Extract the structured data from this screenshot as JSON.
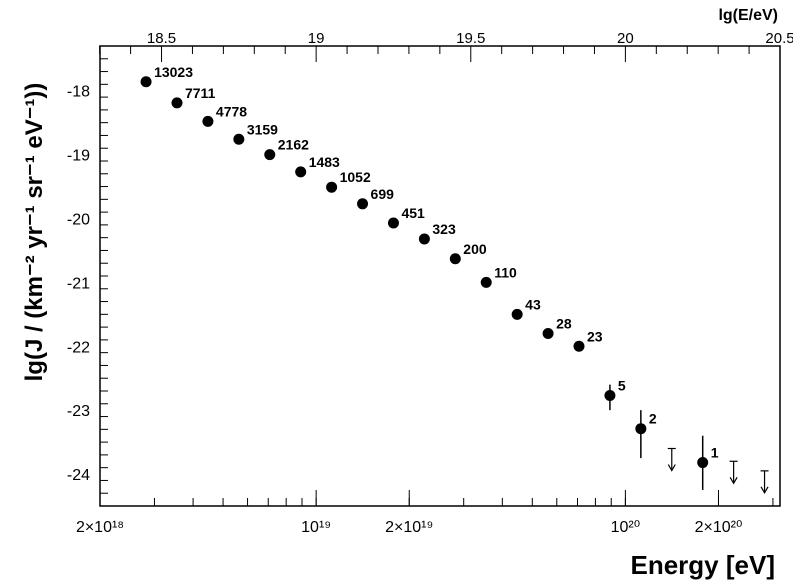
{
  "chart_data": {
    "type": "scatter",
    "x_scale": "log",
    "y_scale": "linear",
    "xlabel": "Energy [eV]",
    "ylabel": "lg(J / (km⁻² yr⁻¹ sr⁻¹ eV⁻¹))",
    "xlabel_top": "lg(E/eV)",
    "xlim": [
      2e+18,
      3.162e+20
    ],
    "ylim": [
      -24.5,
      -17.3
    ],
    "top_lim": [
      18.3,
      20.5
    ],
    "x_ticks_bottom": [
      {
        "value": 2e+18,
        "label": "2×10¹⁸"
      },
      {
        "value": 1e+19,
        "label": "10¹⁹"
      },
      {
        "value": 2e+19,
        "label": "2×10¹⁹"
      },
      {
        "value": 1e+20,
        "label": "10²⁰"
      },
      {
        "value": 2e+20,
        "label": "2×10²⁰"
      }
    ],
    "x_ticks_top": [
      {
        "value": 18.5,
        "label": "18.5"
      },
      {
        "value": 19,
        "label": "19"
      },
      {
        "value": 19.5,
        "label": "19.5"
      },
      {
        "value": 20,
        "label": "20"
      },
      {
        "value": 20.5,
        "label": "20.5"
      }
    ],
    "y_ticks": [
      {
        "value": -18,
        "label": "-18"
      },
      {
        "value": -19,
        "label": "-19"
      },
      {
        "value": -20,
        "label": "-20"
      },
      {
        "value": -21,
        "label": "-21"
      },
      {
        "value": -22,
        "label": "-22"
      },
      {
        "value": -23,
        "label": "-23"
      },
      {
        "value": -24,
        "label": "-24"
      }
    ],
    "grid": false,
    "points": [
      {
        "lgE": 18.45,
        "y": -17.86,
        "label": "13023"
      },
      {
        "lgE": 18.55,
        "y": -18.19,
        "label": "7711"
      },
      {
        "lgE": 18.65,
        "y": -18.48,
        "label": "4778"
      },
      {
        "lgE": 18.75,
        "y": -18.76,
        "label": "3159"
      },
      {
        "lgE": 18.85,
        "y": -19.0,
        "label": "2162"
      },
      {
        "lgE": 18.95,
        "y": -19.27,
        "label": "1483"
      },
      {
        "lgE": 19.05,
        "y": -19.51,
        "label": "1052"
      },
      {
        "lgE": 19.15,
        "y": -19.77,
        "label": "699"
      },
      {
        "lgE": 19.25,
        "y": -20.07,
        "label": "451"
      },
      {
        "lgE": 19.35,
        "y": -20.32,
        "label": "323"
      },
      {
        "lgE": 19.45,
        "y": -20.63,
        "label": "200"
      },
      {
        "lgE": 19.55,
        "y": -21.0,
        "label": "110"
      },
      {
        "lgE": 19.65,
        "y": -21.5,
        "label": "43"
      },
      {
        "lgE": 19.75,
        "y": -21.8,
        "label": "28"
      },
      {
        "lgE": 19.85,
        "y": -22.0,
        "label": "23"
      },
      {
        "lgE": 19.95,
        "y": -22.77,
        "label": "5",
        "err_low": -23.0,
        "err_high": -22.6
      },
      {
        "lgE": 20.05,
        "y": -23.29,
        "label": "2",
        "err_low": -23.75,
        "err_high": -23.0
      },
      {
        "lgE": 20.25,
        "y": -23.82,
        "label": "1",
        "err_low": -24.25,
        "err_high": -23.4
      }
    ],
    "upper_limits": [
      {
        "lgE": 20.15,
        "y": -23.6
      },
      {
        "lgE": 20.35,
        "y": -23.8
      },
      {
        "lgE": 20.45,
        "y": -23.95
      }
    ]
  }
}
